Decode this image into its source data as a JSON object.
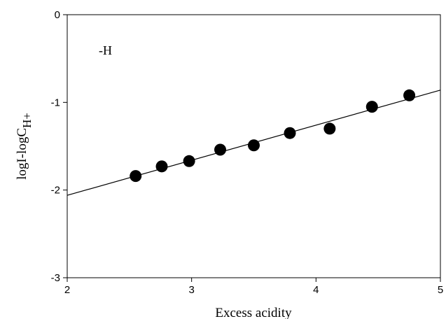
{
  "chart_data": {
    "type": "scatter",
    "title": "",
    "xlabel": "Excess acidity",
    "ylabel_main": "logI-logC",
    "ylabel_sub": "H+",
    "annotation": "-H",
    "xlim": [
      2,
      5
    ],
    "ylim": [
      -3,
      0
    ],
    "x_ticks": [
      2,
      3,
      4,
      5
    ],
    "y_ticks": [
      0,
      -1,
      -2,
      -3
    ],
    "grid": false,
    "legend": "none",
    "marker_color": "#000000",
    "series": [
      {
        "points": [
          {
            "x": 2.55,
            "y": -1.84
          },
          {
            "x": 2.76,
            "y": -1.73
          },
          {
            "x": 2.98,
            "y": -1.67
          },
          {
            "x": 3.23,
            "y": -1.54
          },
          {
            "x": 3.5,
            "y": -1.49
          },
          {
            "x": 3.79,
            "y": -1.35
          },
          {
            "x": 4.11,
            "y": -1.3
          },
          {
            "x": 4.45,
            "y": -1.05
          },
          {
            "x": 4.75,
            "y": -0.92
          }
        ]
      }
    ],
    "fit_line": {
      "x": [
        2,
        5
      ],
      "y": [
        -2.06,
        -0.86
      ]
    }
  }
}
